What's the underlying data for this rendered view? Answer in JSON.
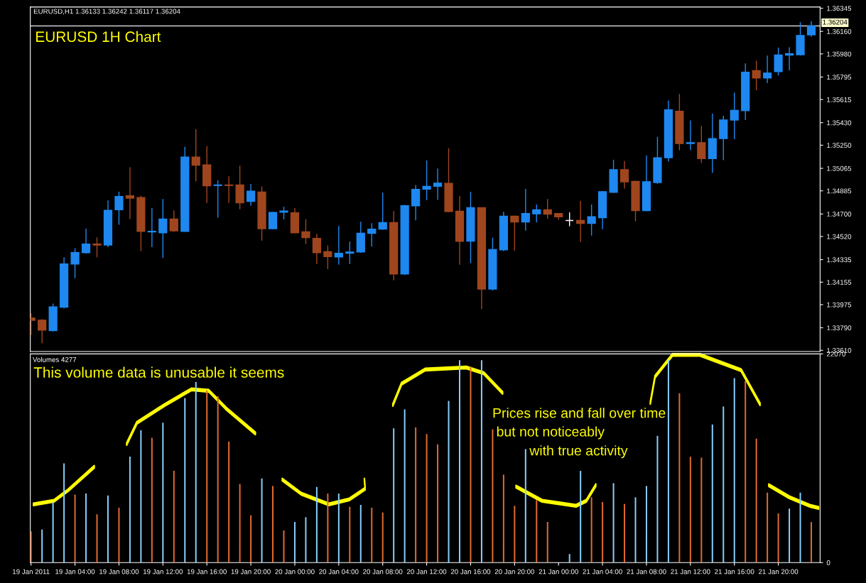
{
  "chart_data": [
    {
      "type": "candlestick",
      "title": "EURUSD 1H Chart",
      "tick_labels": "y",
      "annotations": [
        "EURUSD,H1 1.36133 1.36242 1.36117 1.36204"
      ],
      "x": [
        "2011-01-19T00:00",
        "2011-01-19T01:00",
        "2011-01-19T02:00",
        "2011-01-19T03:00",
        "2011-01-19T04:00",
        "2011-01-19T05:00",
        "2011-01-19T06:00",
        "2011-01-19T07:00",
        "2011-01-19T08:00",
        "2011-01-19T09:00",
        "2011-01-19T10:00",
        "2011-01-19T11:00",
        "2011-01-19T12:00",
        "2011-01-19T13:00",
        "2011-01-19T14:00",
        "2011-01-19T15:00",
        "2011-01-19T16:00",
        "2011-01-19T17:00",
        "2011-01-19T18:00",
        "2011-01-19T19:00",
        "2011-01-19T20:00",
        "2011-01-19T21:00",
        "2011-01-19T22:00",
        "2011-01-19T23:00",
        "2011-01-20T00:00",
        "2011-01-20T01:00",
        "2011-01-20T02:00",
        "2011-01-20T03:00",
        "2011-01-20T04:00",
        "2011-01-20T05:00",
        "2011-01-20T06:00",
        "2011-01-20T07:00",
        "2011-01-20T08:00",
        "2011-01-20T09:00",
        "2011-01-20T10:00",
        "2011-01-20T11:00",
        "2011-01-20T12:00",
        "2011-01-20T13:00",
        "2011-01-20T14:00",
        "2011-01-20T15:00",
        "2011-01-20T16:00",
        "2011-01-20T17:00",
        "2011-01-20T18:00",
        "2011-01-20T19:00",
        "2011-01-20T20:00",
        "2011-01-20T21:00",
        "2011-01-20T22:00",
        "2011-01-20T23:00",
        "2011-01-21T00:00",
        "2011-01-21T01:00",
        "2011-01-21T02:00",
        "2011-01-21T03:00",
        "2011-01-21T04:00",
        "2011-01-21T05:00",
        "2011-01-21T06:00",
        "2011-01-21T07:00",
        "2011-01-21T08:00",
        "2011-01-21T09:00",
        "2011-01-21T10:00",
        "2011-01-21T11:00",
        "2011-01-21T12:00",
        "2011-01-21T13:00",
        "2011-01-21T14:00",
        "2011-01-21T15:00",
        "2011-01-21T16:00",
        "2011-01-21T17:00",
        "2011-01-21T18:00",
        "2011-01-21T19:00",
        "2011-01-21T20:00",
        "2011-01-21T21:00",
        "2011-01-21T22:00",
        "2011-01-21T23:00"
      ],
      "ohlc": [
        [
          1.33868,
          1.33907,
          1.33733,
          1.3385
        ],
        [
          1.3385,
          1.33859,
          1.33667,
          1.33772
        ],
        [
          1.33767,
          1.33983,
          1.33759,
          1.33957
        ],
        [
          1.33955,
          1.34354,
          1.33946,
          1.343
        ],
        [
          1.343,
          1.34426,
          1.34186,
          1.34391
        ],
        [
          1.34391,
          1.34583,
          1.34382,
          1.34459
        ],
        [
          1.34459,
          1.34513,
          1.34354,
          1.34452
        ],
        [
          1.34452,
          1.34808,
          1.34435,
          1.34729
        ],
        [
          1.34734,
          1.34878,
          1.34614,
          1.3484
        ],
        [
          1.34845,
          1.35074,
          1.34659,
          1.34827
        ],
        [
          1.34832,
          1.34845,
          1.34404,
          1.34561
        ],
        [
          1.34557,
          1.34747,
          1.34435,
          1.34561
        ],
        [
          1.3455,
          1.34819,
          1.34348,
          1.34659
        ],
        [
          1.34659,
          1.34729,
          1.34557,
          1.34566
        ],
        [
          1.34561,
          1.35237,
          1.34557,
          1.35155
        ],
        [
          1.35155,
          1.35377,
          1.3496,
          1.35091
        ],
        [
          1.35093,
          1.35242,
          1.34788,
          1.34926
        ],
        [
          1.34928,
          1.34969,
          1.3467,
          1.34932
        ],
        [
          1.34932,
          1.35002,
          1.34788,
          1.34928
        ],
        [
          1.34932,
          1.35085,
          1.34738,
          1.3479
        ],
        [
          1.34801,
          1.34941,
          1.34766,
          1.34882
        ],
        [
          1.34875,
          1.34919,
          1.34487,
          1.34583
        ],
        [
          1.34583,
          1.34718,
          1.34579,
          1.34712
        ],
        [
          1.34714,
          1.34758,
          1.34657,
          1.34723
        ],
        [
          1.3471,
          1.34747,
          1.34546,
          1.3455
        ],
        [
          1.34557,
          1.34657,
          1.34459,
          1.34511
        ],
        [
          1.34505,
          1.3454,
          1.343,
          1.34391
        ],
        [
          1.34398,
          1.34448,
          1.3426,
          1.34359
        ],
        [
          1.34356,
          1.34605,
          1.34295,
          1.34385
        ],
        [
          1.34387,
          1.34479,
          1.343,
          1.34396
        ],
        [
          1.34396,
          1.34638,
          1.34389,
          1.34546
        ],
        [
          1.34546,
          1.34627,
          1.34439,
          1.34579
        ],
        [
          1.34579,
          1.34871,
          1.34572,
          1.34631
        ],
        [
          1.34631,
          1.34723,
          1.34169,
          1.34221
        ],
        [
          1.34221,
          1.34773,
          1.34212,
          1.34766
        ],
        [
          1.34766,
          1.34932,
          1.34649,
          1.34897
        ],
        [
          1.34899,
          1.35128,
          1.3481,
          1.34921
        ],
        [
          1.34922,
          1.35064,
          1.34813,
          1.34947
        ],
        [
          1.34945,
          1.35226,
          1.34715,
          1.3472
        ],
        [
          1.34722,
          1.34843,
          1.34295,
          1.34481
        ],
        [
          1.34483,
          1.34878,
          1.34307,
          1.3475
        ],
        [
          1.3475,
          1.3475,
          1.3394,
          1.341
        ],
        [
          1.341,
          1.34511,
          1.34088,
          1.34416
        ],
        [
          1.34413,
          1.34718,
          1.34404,
          1.34683
        ],
        [
          1.34683,
          1.34687,
          1.34406,
          1.34636
        ],
        [
          1.34636,
          1.34901,
          1.34567,
          1.34704
        ],
        [
          1.34701,
          1.34776,
          1.34632,
          1.34734
        ],
        [
          1.34734,
          1.3482,
          1.34662,
          1.34699
        ],
        [
          1.34704,
          1.34708,
          1.34655,
          1.34678
        ],
        [
          1.34648,
          1.34713,
          1.34602,
          1.34648
        ],
        [
          1.34648,
          1.34804,
          1.34476,
          1.34625
        ],
        [
          1.34625,
          1.34776,
          1.34527,
          1.34678
        ],
        [
          1.34671,
          1.34883,
          1.34578,
          1.34878
        ],
        [
          1.34873,
          1.35133,
          1.34869,
          1.35054
        ],
        [
          1.35054,
          1.35124,
          1.34903,
          1.34957
        ],
        [
          1.34961,
          1.34966,
          1.34641,
          1.34727
        ],
        [
          1.34727,
          1.35168,
          1.34722,
          1.34957
        ],
        [
          1.34952,
          1.35317,
          1.34941,
          1.3515
        ],
        [
          1.3515,
          1.35607,
          1.35119,
          1.35533
        ],
        [
          1.35521,
          1.3566,
          1.35208,
          1.35263
        ],
        [
          1.35263,
          1.35449,
          1.35212,
          1.3527
        ],
        [
          1.3527,
          1.35405,
          1.35108,
          1.35143
        ],
        [
          1.35143,
          1.35502,
          1.35029,
          1.35303
        ],
        [
          1.35303,
          1.35486,
          1.35131,
          1.35451
        ],
        [
          1.35451,
          1.3567,
          1.35298,
          1.35528
        ],
        [
          1.35526,
          1.35904,
          1.35451,
          1.35834
        ],
        [
          1.35846,
          1.35925,
          1.35688,
          1.35788
        ],
        [
          1.35788,
          1.35967,
          1.35746,
          1.35827
        ],
        [
          1.35839,
          1.3603,
          1.35807,
          1.35971
        ],
        [
          1.35971,
          1.36034,
          1.35848,
          1.35981
        ],
        [
          1.35974,
          1.36234,
          1.35967,
          1.36127
        ],
        [
          1.36133,
          1.36242,
          1.36117,
          1.36204
        ]
      ],
      "colors": [
        "#a0461e",
        "#a0461e",
        "#1e88f0",
        "#1e88f0",
        "#1e88f0",
        "#1e88f0",
        "#a0461e",
        "#1e88f0",
        "#1e88f0",
        "#a0461e",
        "#a0461e",
        "#1e88f0",
        "#1e88f0",
        "#a0461e",
        "#1e88f0",
        "#a0461e",
        "#a0461e",
        "#1e88f0",
        "#a0461e",
        "#a0461e",
        "#1e88f0",
        "#a0461e",
        "#1e88f0",
        "#1e88f0",
        "#a0461e",
        "#a0461e",
        "#a0461e",
        "#a0461e",
        "#1e88f0",
        "#1e88f0",
        "#1e88f0",
        "#1e88f0",
        "#1e88f0",
        "#a0461e",
        "#1e88f0",
        "#1e88f0",
        "#1e88f0",
        "#1e88f0",
        "#a0461e",
        "#a0461e",
        "#1e88f0",
        "#a0461e",
        "#1e88f0",
        "#1e88f0",
        "#a0461e",
        "#1e88f0",
        "#1e88f0",
        "#a0461e",
        "#a0461e",
        "#ffffff",
        "#a0461e",
        "#1e88f0",
        "#1e88f0",
        "#1e88f0",
        "#a0461e",
        "#a0461e",
        "#1e88f0",
        "#1e88f0",
        "#1e88f0",
        "#a0461e",
        "#1e88f0",
        "#a0461e",
        "#1e88f0",
        "#1e88f0",
        "#1e88f0",
        "#1e88f0",
        "#a0461e",
        "#1e88f0",
        "#1e88f0",
        "#1e88f0",
        "#1e88f0",
        "#1e88f0"
      ],
      "xlim": [
        "2011-01-18T23:56",
        "2011-01-21T23:48"
      ],
      "ylim": [
        1.336,
        1.36355
      ],
      "yticks": [
        {
          "value": 1.3361,
          "label": "1.33610"
        },
        {
          "value": 1.3379,
          "label": "1.33790"
        },
        1.33975,
        1.34155,
        1.34335,
        {
          "value": 1.3452,
          "label": "1.34520"
        },
        {
          "value": 1.347,
          "label": "1.34700"
        },
        1.34885,
        1.35065,
        {
          "value": 1.3525,
          "label": "1.35250"
        },
        {
          "value": 1.3543,
          "label": "1.35430"
        },
        1.35615,
        1.35795,
        {
          "value": 1.3598,
          "label": "1.35980"
        },
        {
          "value": 1.3616,
          "label": "1.36160"
        },
        1.36345
      ],
      "ref_lines": [
        {
          "axis": "y",
          "value": 1.36204,
          "label": "1.36204",
          "color": "#d0d0d0"
        }
      ]
    },
    {
      "type": "bar",
      "annotations": [
        "Volumes 4277",
        "This volume data is unusable it seems",
        "Prices rise and fall over time",
        "but not noticeably",
        "with true activity"
      ],
      "x": [
        "2011-01-19T00:00",
        "2011-01-19T01:00",
        "2011-01-19T02:00",
        "2011-01-19T03:00",
        "2011-01-19T04:00",
        "2011-01-19T05:00",
        "2011-01-19T06:00",
        "2011-01-19T07:00",
        "2011-01-19T08:00",
        "2011-01-19T09:00",
        "2011-01-19T10:00",
        "2011-01-19T11:00",
        "2011-01-19T12:00",
        "2011-01-19T13:00",
        "2011-01-19T14:00",
        "2011-01-19T15:00",
        "2011-01-19T16:00",
        "2011-01-19T17:00",
        "2011-01-19T18:00",
        "2011-01-19T19:00",
        "2011-01-19T20:00",
        "2011-01-19T21:00",
        "2011-01-19T22:00",
        "2011-01-19T23:00",
        "2011-01-20T00:00",
        "2011-01-20T01:00",
        "2011-01-20T02:00",
        "2011-01-20T03:00",
        "2011-01-20T04:00",
        "2011-01-20T05:00",
        "2011-01-20T06:00",
        "2011-01-20T07:00",
        "2011-01-20T08:00",
        "2011-01-20T09:00",
        "2011-01-20T10:00",
        "2011-01-20T11:00",
        "2011-01-20T12:00",
        "2011-01-20T13:00",
        "2011-01-20T14:00",
        "2011-01-20T15:00",
        "2011-01-20T16:00",
        "2011-01-20T17:00",
        "2011-01-20T18:00",
        "2011-01-20T19:00",
        "2011-01-20T20:00",
        "2011-01-20T21:00",
        "2011-01-20T22:00",
        "2011-01-20T23:00",
        "2011-01-21T00:00",
        "2011-01-21T01:00",
        "2011-01-21T02:00",
        "2011-01-21T03:00",
        "2011-01-21T04:00",
        "2011-01-21T05:00",
        "2011-01-21T06:00",
        "2011-01-21T07:00",
        "2011-01-21T08:00",
        "2011-01-21T09:00",
        "2011-01-21T10:00",
        "2011-01-21T11:00",
        "2011-01-21T12:00",
        "2011-01-21T13:00",
        "2011-01-21T14:00",
        "2011-01-21T15:00",
        "2011-01-21T16:00",
        "2011-01-21T17:00",
        "2011-01-21T18:00",
        "2011-01-21T19:00",
        "2011-01-21T20:00",
        "2011-01-21T21:00",
        "2011-01-21T22:00",
        "2011-01-21T23:00"
      ],
      "values": [
        3300,
        3500,
        6400,
        10500,
        7200,
        7300,
        5100,
        7100,
        5800,
        11200,
        14000,
        13200,
        14800,
        9700,
        17400,
        19100,
        18200,
        17600,
        12800,
        8300,
        5000,
        8900,
        8100,
        3400,
        4300,
        4800,
        8000,
        7300,
        7300,
        5900,
        6100,
        5800,
        5300,
        14200,
        16200,
        14300,
        13600,
        12500,
        17100,
        21400,
        20700,
        21400,
        14100,
        9300,
        6000,
        12000,
        6600,
        4300,
        0,
        900,
        9700,
        6900,
        6400,
        8400,
        6200,
        6900,
        8100,
        13400,
        21400,
        17900,
        11200,
        11100,
        14600,
        16500,
        19500,
        19200,
        13100,
        7400,
        5200,
        5700,
        7400,
        4277
      ],
      "colors": [
        "#e06a30",
        "#87cefa",
        "#87cefa",
        "#87cefa",
        "#e06a30",
        "#87cefa",
        "#e06a30",
        "#87cefa",
        "#e06a30",
        "#87cefa",
        "#87cefa",
        "#e06a30",
        "#87cefa",
        "#e06a30",
        "#87cefa",
        "#87cefa",
        "#e06a30",
        "#e06a30",
        "#e06a30",
        "#e06a30",
        "#e06a30",
        "#87cefa",
        "#e06a30",
        "#e06a30",
        "#87cefa",
        "#87cefa",
        "#87cefa",
        "#e06a30",
        "#87cefa",
        "#e06a30",
        "#87cefa",
        "#e06a30",
        "#e06a30",
        "#87cefa",
        "#87cefa",
        "#e06a30",
        "#e06a30",
        "#e06a30",
        "#87cefa",
        "#87cefa",
        "#e06a30",
        "#87cefa",
        "#e06a30",
        "#e06a30",
        "#e06a30",
        "#87cefa",
        "#e06a30",
        "#e06a30",
        "#e06a30",
        "#87cefa",
        "#87cefa",
        "#e06a30",
        "#e06a30",
        "#87cefa",
        "#e06a30",
        "#87cefa",
        "#87cefa",
        "#87cefa",
        "#87cefa",
        "#e06a30",
        "#e06a30",
        "#e06a30",
        "#87cefa",
        "#87cefa",
        "#87cefa",
        "#e06a30",
        "#e06a30",
        "#e06a30",
        "#e06a30",
        "#87cefa",
        "#87cefa",
        "#e06a30"
      ],
      "xlim": [
        "2011-01-18T23:56",
        "2011-01-21T23:48"
      ],
      "ylim": [
        0,
        22070
      ],
      "yticks": [
        0,
        22070
      ],
      "xticks": [
        {
          "value": "2011-01-19T00:00",
          "label": "19 Jan 2011"
        },
        {
          "value": "2011-01-19T04:00",
          "label": "19 Jan 04:00"
        },
        {
          "value": "2011-01-19T08:00",
          "label": "19 Jan 08:00"
        },
        {
          "value": "2011-01-19T12:00",
          "label": "19 Jan 12:00"
        },
        {
          "value": "2011-01-19T16:00",
          "label": "19 Jan 16:00"
        },
        {
          "value": "2011-01-19T20:00",
          "label": "19 Jan 20:00"
        },
        {
          "value": "2011-01-20T00:00",
          "label": "20 Jan 00:00"
        },
        {
          "value": "2011-01-20T04:00",
          "label": "20 Jan 04:00"
        },
        {
          "value": "2011-01-20T08:00",
          "label": "20 Jan 08:00"
        },
        {
          "value": "2011-01-20T12:00",
          "label": "20 Jan 12:00"
        },
        {
          "value": "2011-01-20T16:00",
          "label": "20 Jan 16:00"
        },
        {
          "value": "2011-01-20T20:00",
          "label": "20 Jan 20:00"
        },
        {
          "value": "2011-01-21T00:00",
          "label": "21 Jan 00:00"
        },
        {
          "value": "2011-01-21T04:00",
          "label": "21 Jan 04:00"
        },
        {
          "value": "2011-01-21T08:00",
          "label": "21 Jan 08:00"
        },
        {
          "value": "2011-01-21T12:00",
          "label": "21 Jan 12:00"
        },
        {
          "value": "2011-01-21T16:00",
          "label": "21 Jan 16:00"
        },
        {
          "value": "2011-01-21T20:00",
          "label": "21 Jan 20:00"
        }
      ]
    }
  ]
}
